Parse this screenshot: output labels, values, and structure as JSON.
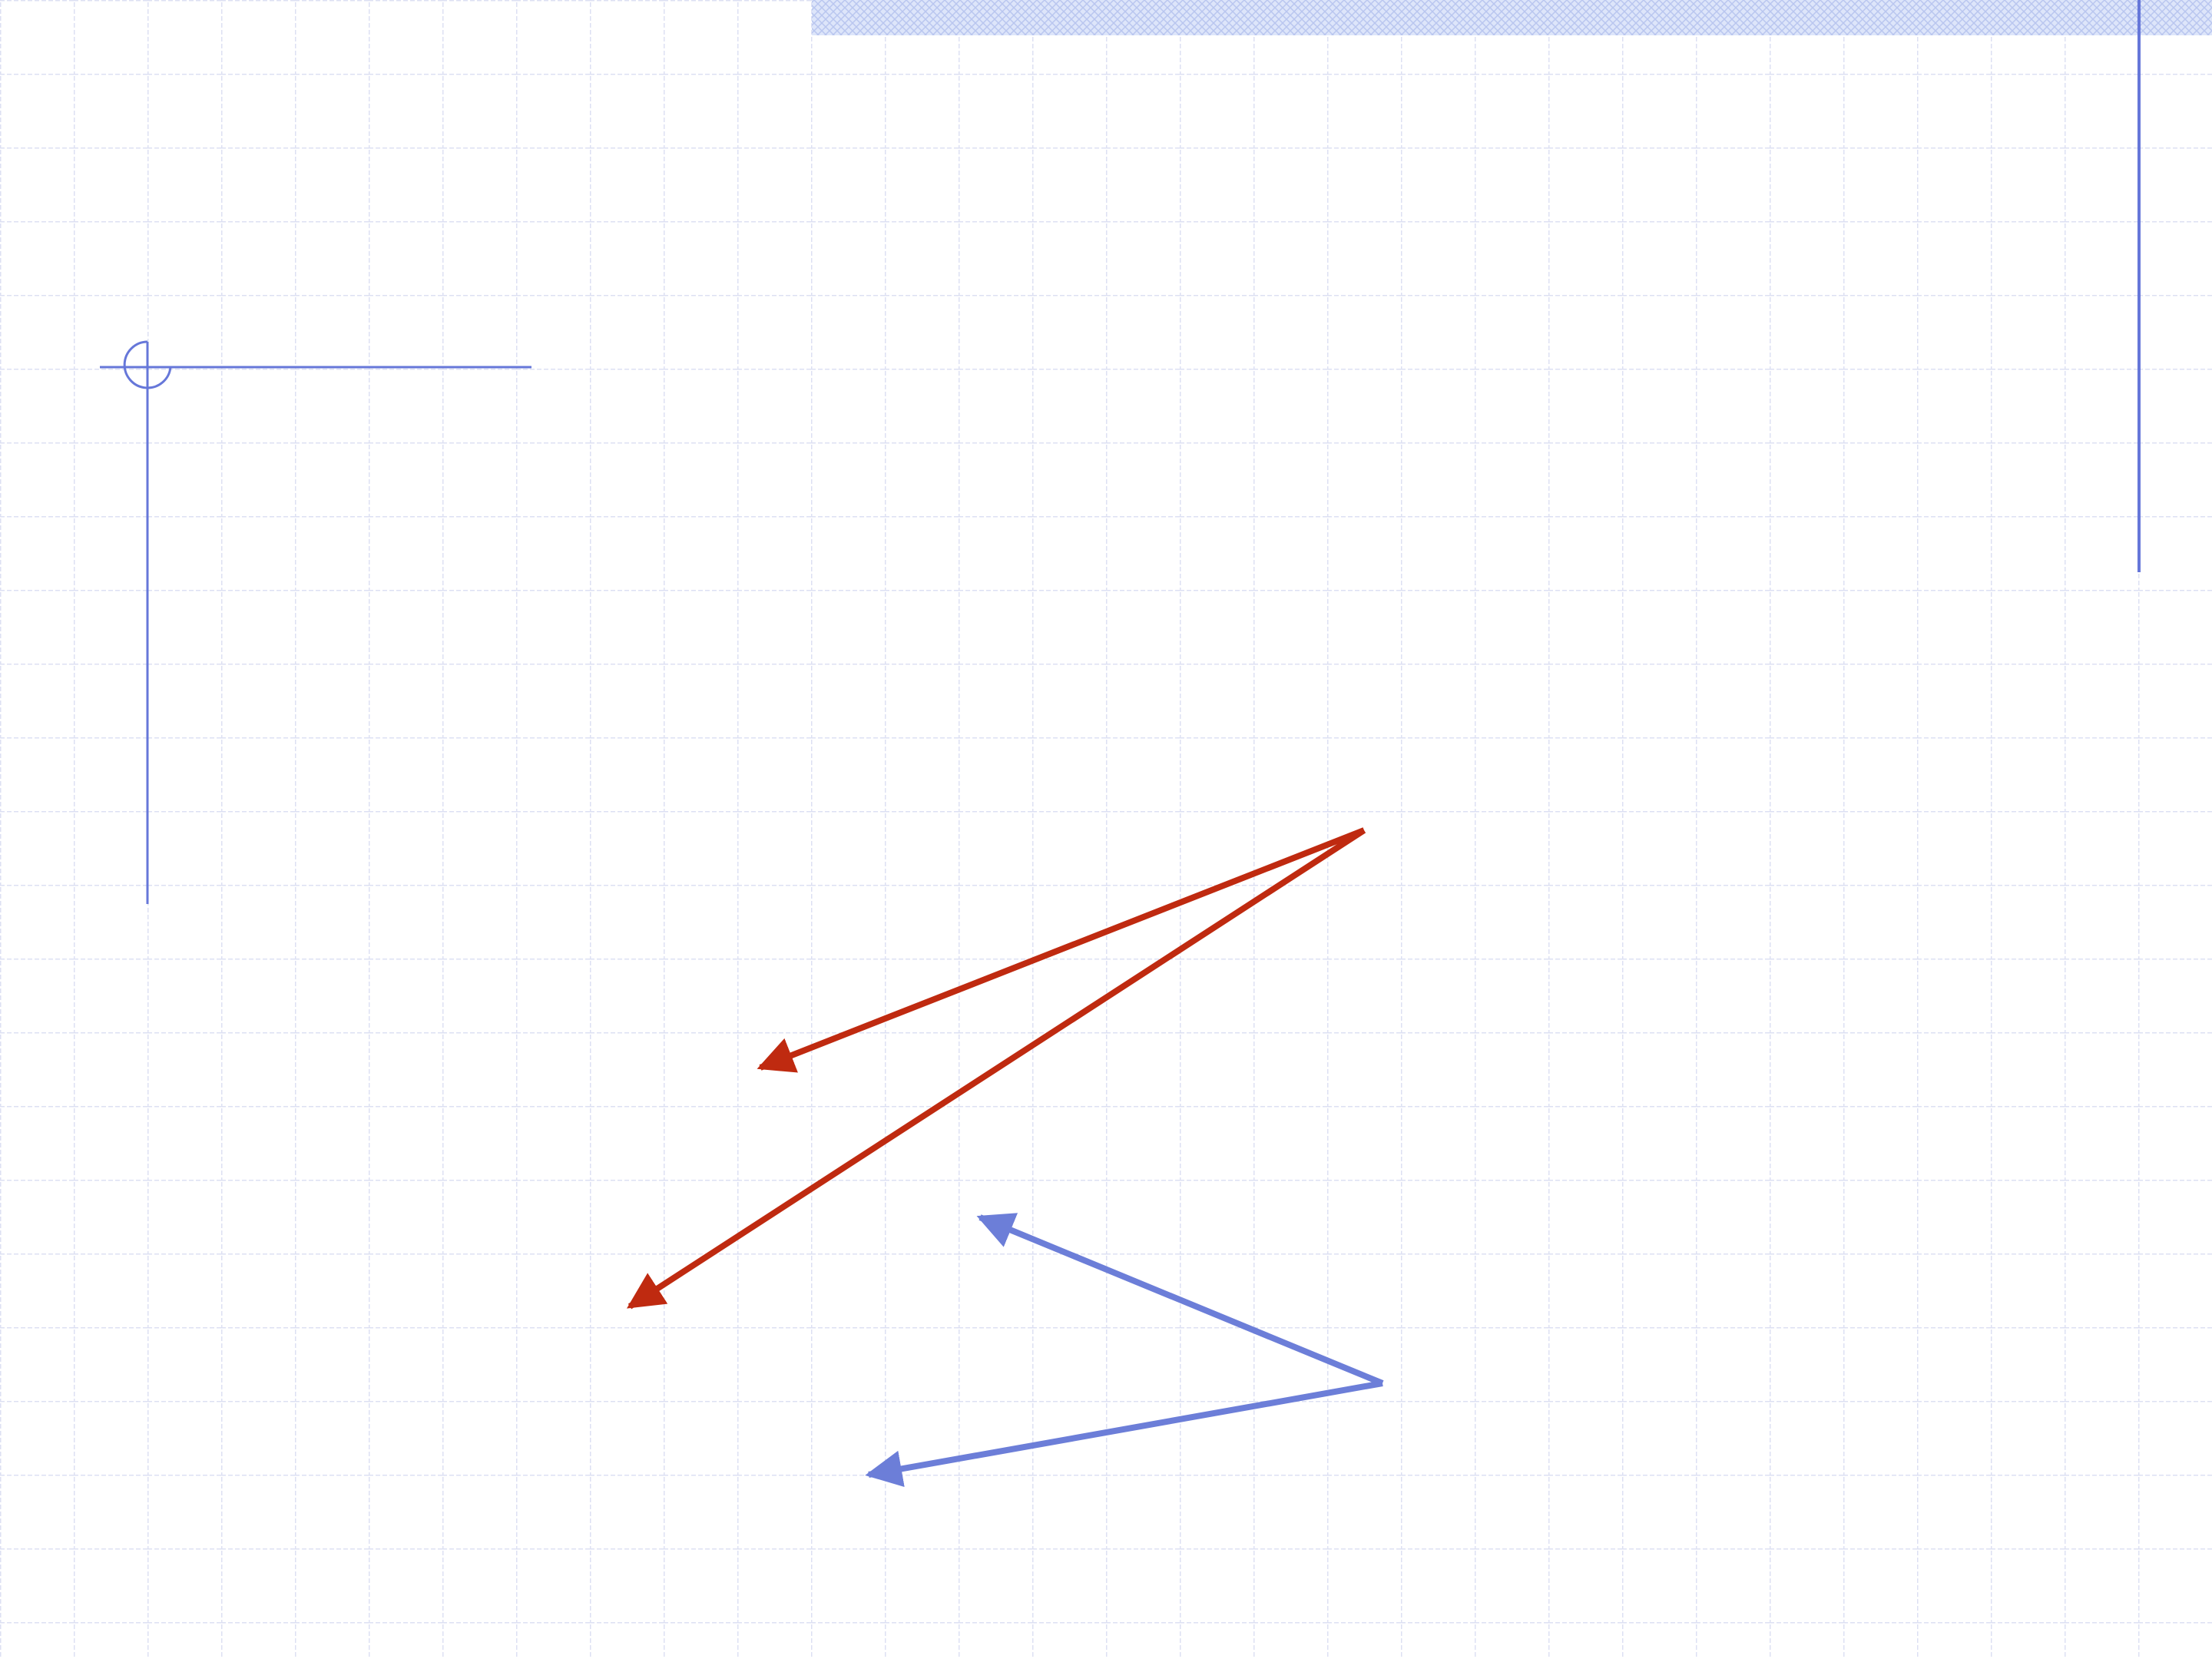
{
  "slide": {
    "background": "#ffffff",
    "grid_color": "#dde0f3",
    "header_band_color": "#cfd8f5",
    "decoration_color": "#6677d9"
  },
  "arrows": {
    "red_color": "#bf2a10",
    "blue_color": "#6c7ed8"
  }
}
